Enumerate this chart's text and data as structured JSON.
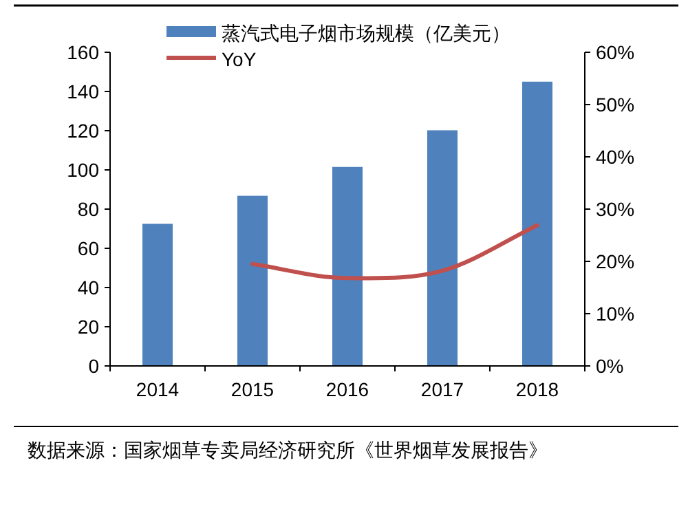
{
  "chart_data": {
    "type": "bar",
    "categories": [
      "2014",
      "2015",
      "2016",
      "2017",
      "2018"
    ],
    "series": [
      {
        "name": "蒸汽式电子烟市场规模（亿美元）",
        "color": "#4f81bd",
        "values": [
          72.5,
          86.8,
          101.5,
          120.2,
          145
        ]
      },
      {
        "name": "YoY",
        "type": "line",
        "axis": "y2",
        "color": "#c0504d",
        "values": [
          null,
          19.5,
          16.8,
          18.2,
          26.9
        ]
      }
    ],
    "ylim": [
      0,
      160
    ],
    "yticks": [
      0,
      20,
      40,
      60,
      80,
      100,
      120,
      140,
      160
    ],
    "y2lim": [
      0,
      60
    ],
    "y2ticks": [
      {
        "value": 0,
        "label": "0%"
      },
      {
        "value": 10,
        "label": "10%"
      },
      {
        "value": 20,
        "label": "20%"
      },
      {
        "value": 30,
        "label": "30%"
      },
      {
        "value": 40,
        "label": "40%"
      },
      {
        "value": 50,
        "label": "50%"
      },
      {
        "value": 60,
        "label": "60%"
      }
    ],
    "grid": false,
    "legend": "top",
    "marker": "none",
    "annotations": [
      "数据来源：国家烟草专卖局经济研究所《世界烟草发展报告》"
    ]
  }
}
